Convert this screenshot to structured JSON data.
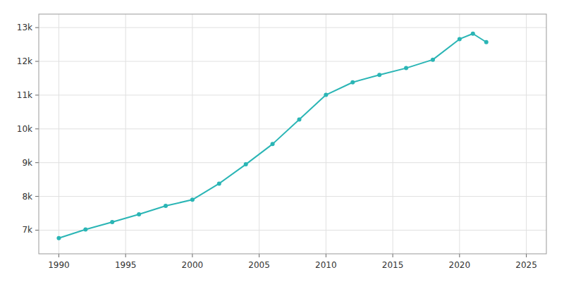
{
  "chart_data": {
    "type": "line",
    "x": [
      1990,
      1992,
      1994,
      1996,
      1998,
      2000,
      2002,
      2004,
      2006,
      2008,
      2010,
      2012,
      2014,
      2016,
      2018,
      2020,
      2021,
      2022
    ],
    "values": [
      6765,
      7020,
      7240,
      7470,
      7720,
      7902,
      8380,
      8950,
      9550,
      10280,
      11007,
      11380,
      11600,
      11800,
      12050,
      12660,
      12820,
      12570
    ],
    "color": "#2ab5b5",
    "marker": "circle",
    "xlim": [
      1988.5,
      2026.5
    ],
    "ylim": [
      6300,
      13400
    ],
    "xticks": [
      1990,
      1995,
      2000,
      2005,
      2010,
      2015,
      2020,
      2025
    ],
    "yticks": [
      {
        "value": 7000,
        "label": "7k"
      },
      {
        "value": 8000,
        "label": "8k"
      },
      {
        "value": 9000,
        "label": "9k"
      },
      {
        "value": 10000,
        "label": "10k"
      },
      {
        "value": 11000,
        "label": "11k"
      },
      {
        "value": 12000,
        "label": "12k"
      },
      {
        "value": 13000,
        "label": "13k"
      }
    ],
    "grid": true
  }
}
